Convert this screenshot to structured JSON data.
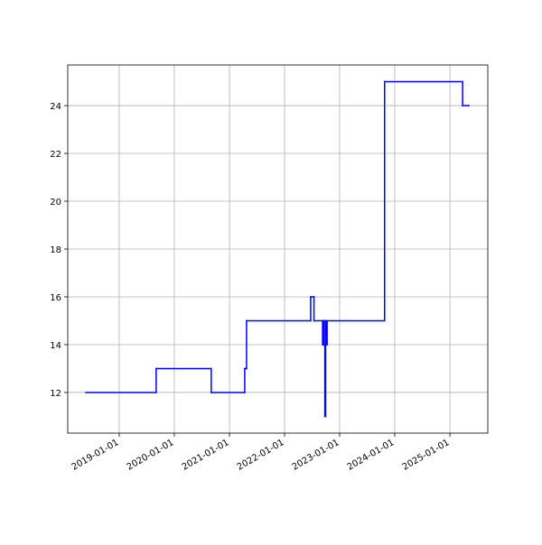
{
  "chart_data": {
    "type": "line",
    "drawstyle": "steps-post",
    "x": [
      "2018-05-25",
      "2019-09-03",
      "2020-09-02",
      "2021-04-12",
      "2021-04-24",
      "2022-06-23",
      "2022-07-15",
      "2022-09-10",
      "2022-09-15",
      "2022-09-20",
      "2022-09-25",
      "2022-09-30",
      "2022-10-05",
      "2022-10-10",
      "2023-10-26",
      "2025-03-26",
      "2025-05-06"
    ],
    "values": [
      12,
      13,
      12,
      13,
      15,
      16,
      15,
      14,
      15,
      14,
      11,
      15,
      14,
      15,
      25,
      24,
      24
    ],
    "color": "#0000ff",
    "xlim": [
      "2018-01-25",
      "2025-09-09"
    ],
    "xticks": [
      "2019-01-01",
      "2020-01-01",
      "2021-01-01",
      "2022-01-01",
      "2023-01-01",
      "2024-01-01",
      "2025-01-01"
    ],
    "ylim": [
      10.3,
      25.7
    ],
    "yticks": [
      12,
      14,
      16,
      18,
      20,
      22,
      24
    ],
    "grid": true
  }
}
